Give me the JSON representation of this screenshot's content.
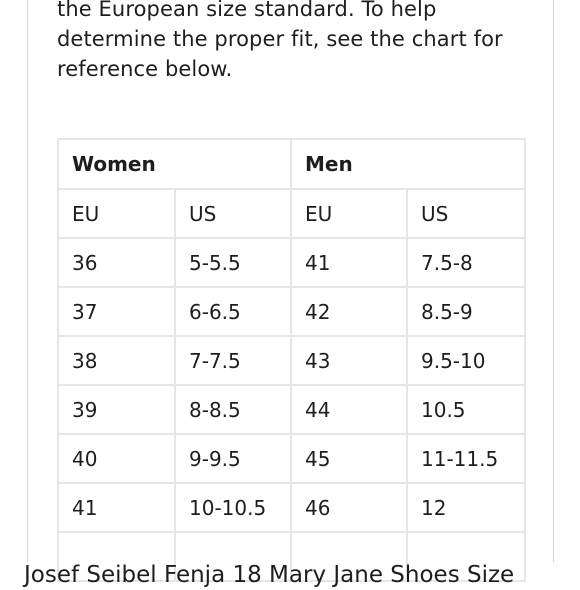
{
  "intro": {
    "lines": [
      "the European size standard. To help",
      "determine the proper fit, see the chart for",
      "reference below."
    ]
  },
  "size_chart": {
    "groups": [
      "Women",
      "Men"
    ],
    "subheaders": [
      "EU",
      "US",
      "EU",
      "US"
    ],
    "rows": [
      [
        "36",
        "5-5.5",
        "41",
        "7.5-8"
      ],
      [
        "37",
        "6-6.5",
        "42",
        "8.5-9"
      ],
      [
        "38",
        "7-7.5",
        "43",
        "9.5-10"
      ],
      [
        "39",
        "8-8.5",
        "44",
        "10.5"
      ],
      [
        "40",
        "9-9.5",
        "45",
        "11-11.5"
      ],
      [
        "41",
        "10-10.5",
        "46",
        "12"
      ],
      [
        "",
        "",
        "",
        ""
      ]
    ]
  },
  "caption": "Josef Seibel Fenja 18 Mary Jane Shoes Size"
}
